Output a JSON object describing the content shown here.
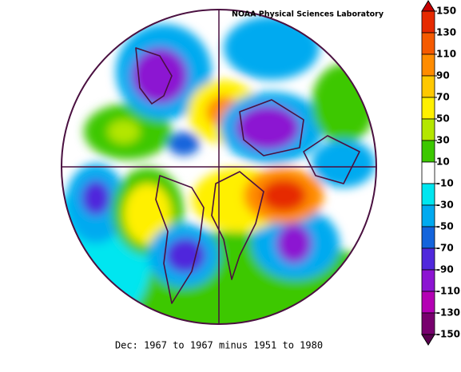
{
  "header": {
    "lab": "NOAA Physical Sciences Laboratory",
    "caption": "Dec: 1967 to 1967 minus 1951 to 1980"
  },
  "colorbar": {
    "ticks": [
      150,
      130,
      110,
      90,
      70,
      50,
      30,
      10,
      -10,
      -30,
      -50,
      -70,
      -90,
      -110,
      -130,
      -150
    ],
    "colors": [
      "#c80000",
      "#e62a00",
      "#f55a00",
      "#ff8c00",
      "#ffc800",
      "#fff000",
      "#b4e600",
      "#3cc800",
      "#ffffff",
      "#00e6f0",
      "#00aaf0",
      "#1464dc",
      "#5028dc",
      "#8c14d2",
      "#b400b4",
      "#78006e",
      "#5a0050"
    ]
  }
}
